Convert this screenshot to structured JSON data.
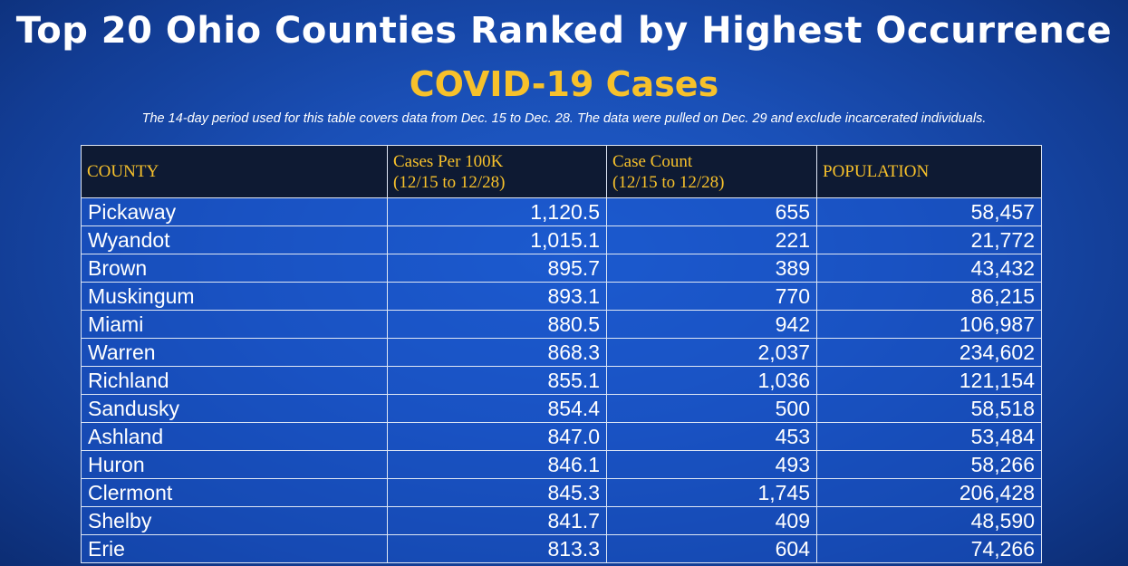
{
  "header": {
    "title": "Top 20 Ohio Counties Ranked by Highest Occurrence",
    "subtitle": "COVID-19 Cases",
    "note": "The 14-day period used for this table covers data from Dec. 15 to Dec. 28.  The data were pulled on Dec. 29 and exclude incarcerated individuals."
  },
  "table": {
    "columns": [
      {
        "line1": "COUNTY",
        "line2": ""
      },
      {
        "line1": "Cases Per 100K",
        "line2": "(12/15 to 12/28)"
      },
      {
        "line1": "Case Count",
        "line2": "(12/15 to 12/28)"
      },
      {
        "line1": "POPULATION",
        "line2": ""
      }
    ],
    "rows": [
      {
        "county": "Pickaway",
        "per100k": "1,120.5",
        "cases": "655",
        "population": "58,457"
      },
      {
        "county": "Wyandot",
        "per100k": "1,015.1",
        "cases": "221",
        "population": "21,772"
      },
      {
        "county": "Brown",
        "per100k": "895.7",
        "cases": "389",
        "population": "43,432"
      },
      {
        "county": "Muskingum",
        "per100k": "893.1",
        "cases": "770",
        "population": "86,215"
      },
      {
        "county": "Miami",
        "per100k": "880.5",
        "cases": "942",
        "population": "106,987"
      },
      {
        "county": "Warren",
        "per100k": "868.3",
        "cases": "2,037",
        "population": "234,602"
      },
      {
        "county": "Richland",
        "per100k": "855.1",
        "cases": "1,036",
        "population": "121,154"
      },
      {
        "county": "Sandusky",
        "per100k": "854.4",
        "cases": "500",
        "population": "58,518"
      },
      {
        "county": "Ashland",
        "per100k": "847.0",
        "cases": "453",
        "population": "53,484"
      },
      {
        "county": "Huron",
        "per100k": "846.1",
        "cases": "493",
        "population": "58,266"
      },
      {
        "county": "Clermont",
        "per100k": "845.3",
        "cases": "1,745",
        "population": "206,428"
      },
      {
        "county": "Shelby",
        "per100k": "841.7",
        "cases": "409",
        "population": "48,590"
      },
      {
        "county": "Erie",
        "per100k": "813.3",
        "cases": "604",
        "population": "74,266"
      }
    ]
  },
  "colors": {
    "background": "#1a4fb6",
    "accent": "#f7c12b",
    "header_bg": "#0e1a33",
    "text": "#ffffff"
  }
}
